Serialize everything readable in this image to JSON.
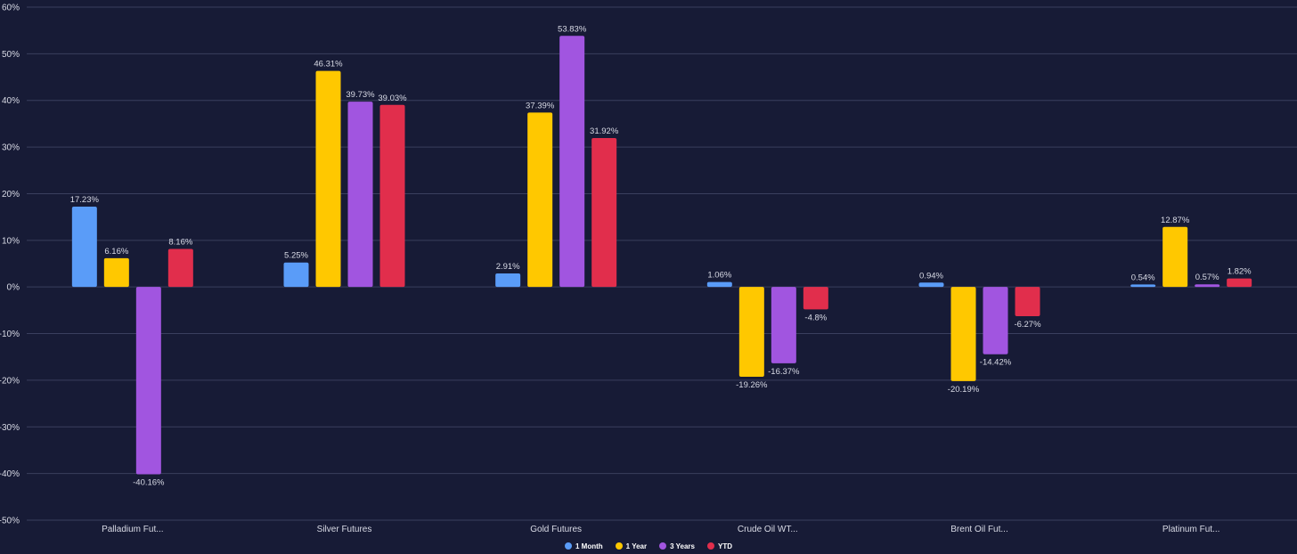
{
  "chart_data": {
    "type": "bar",
    "title": "",
    "xlabel": "",
    "ylabel": "",
    "ylim": [
      -50,
      60
    ],
    "yticks": [
      60,
      50,
      40,
      30,
      20,
      10,
      0,
      -10,
      -20,
      -30,
      -40,
      -50
    ],
    "ytick_labels": [
      "60%",
      "50%",
      "40%",
      "30%",
      "20%",
      "10%",
      "0%",
      "-10%",
      "-20%",
      "-30%",
      "-40%",
      "-50%"
    ],
    "grid": true,
    "legend_position": "bottom-center",
    "categories": [
      "Palladium Fut...",
      "Silver Futures",
      "Gold Futures",
      "Crude Oil WT...",
      "Brent Oil Fut...",
      "Platinum Fut..."
    ],
    "series": [
      {
        "name": "1 Month",
        "color": "#5a9cf8",
        "values": [
          17.23,
          5.25,
          2.91,
          1.06,
          0.94,
          0.54
        ],
        "labels": [
          "17.23%",
          "5.25%",
          "2.91%",
          "1.06%",
          "0.94%",
          "0.54%"
        ]
      },
      {
        "name": "1 Year",
        "color": "#ffc800",
        "values": [
          6.16,
          46.31,
          37.39,
          -19.26,
          -20.19,
          12.87
        ],
        "labels": [
          "6.16%",
          "46.31%",
          "37.39%",
          "-19.26%",
          "-20.19%",
          "12.87%"
        ]
      },
      {
        "name": "3 Years",
        "color": "#a155e0",
        "values": [
          -40.16,
          39.73,
          53.83,
          -16.37,
          -14.42,
          0.57
        ],
        "labels": [
          "-40.16%",
          "39.73%",
          "53.83%",
          "-16.37%",
          "-14.42%",
          "0.57%"
        ]
      },
      {
        "name": "YTD",
        "color": "#e12e4c",
        "values": [
          8.16,
          39.03,
          31.92,
          -4.8,
          -6.27,
          1.82
        ],
        "labels": [
          "8.16%",
          "39.03%",
          "31.92%",
          "-4.8%",
          "-6.27%",
          "1.82%"
        ]
      }
    ]
  }
}
